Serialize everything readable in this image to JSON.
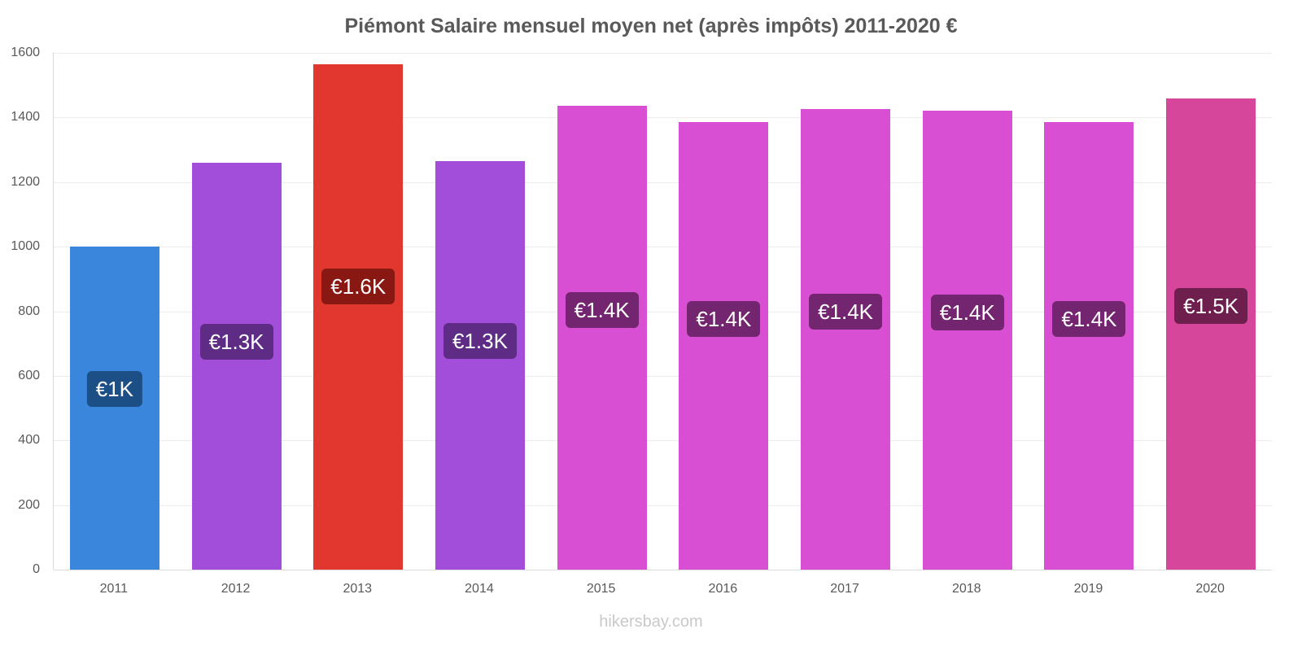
{
  "title": "Piémont Salaire mensuel moyen net (après impôts) 2011-2020 €",
  "footer": "hikersbay.com",
  "chart_data": {
    "type": "bar",
    "title": "Piémont Salaire mensuel moyen net (après impôts) 2011-2020 €",
    "categories": [
      "2011",
      "2012",
      "2013",
      "2014",
      "2015",
      "2016",
      "2017",
      "2018",
      "2019",
      "2020"
    ],
    "values": [
      1000,
      1260,
      1565,
      1265,
      1435,
      1385,
      1425,
      1420,
      1385,
      1460
    ],
    "bar_value_labels": [
      "€1K",
      "€1.3K",
      "€1.6K",
      "€1.3K",
      "€1.4K",
      "€1.4K",
      "€1.4K",
      "€1.4K",
      "€1.4K",
      "€1.5K"
    ],
    "bar_colors": [
      "#3a86dd",
      "#a34edb",
      "#e2372f",
      "#a34edb",
      "#d94fd4",
      "#d94fd4",
      "#d94fd4",
      "#d94fd4",
      "#d94fd4",
      "#d6479b"
    ],
    "label_bg_colors": [
      "#1d4f87",
      "#5e2c84",
      "#891712",
      "#5e2c84",
      "#73256f",
      "#73256f",
      "#73256f",
      "#73256f",
      "#73256f",
      "#6f1f4e"
    ],
    "xlabel": "",
    "ylabel": "",
    "ylim": [
      0,
      1600
    ],
    "yticks": [
      0,
      200,
      400,
      600,
      800,
      1000,
      1200,
      1400,
      1600
    ],
    "grid": true,
    "legend_position": "none"
  }
}
